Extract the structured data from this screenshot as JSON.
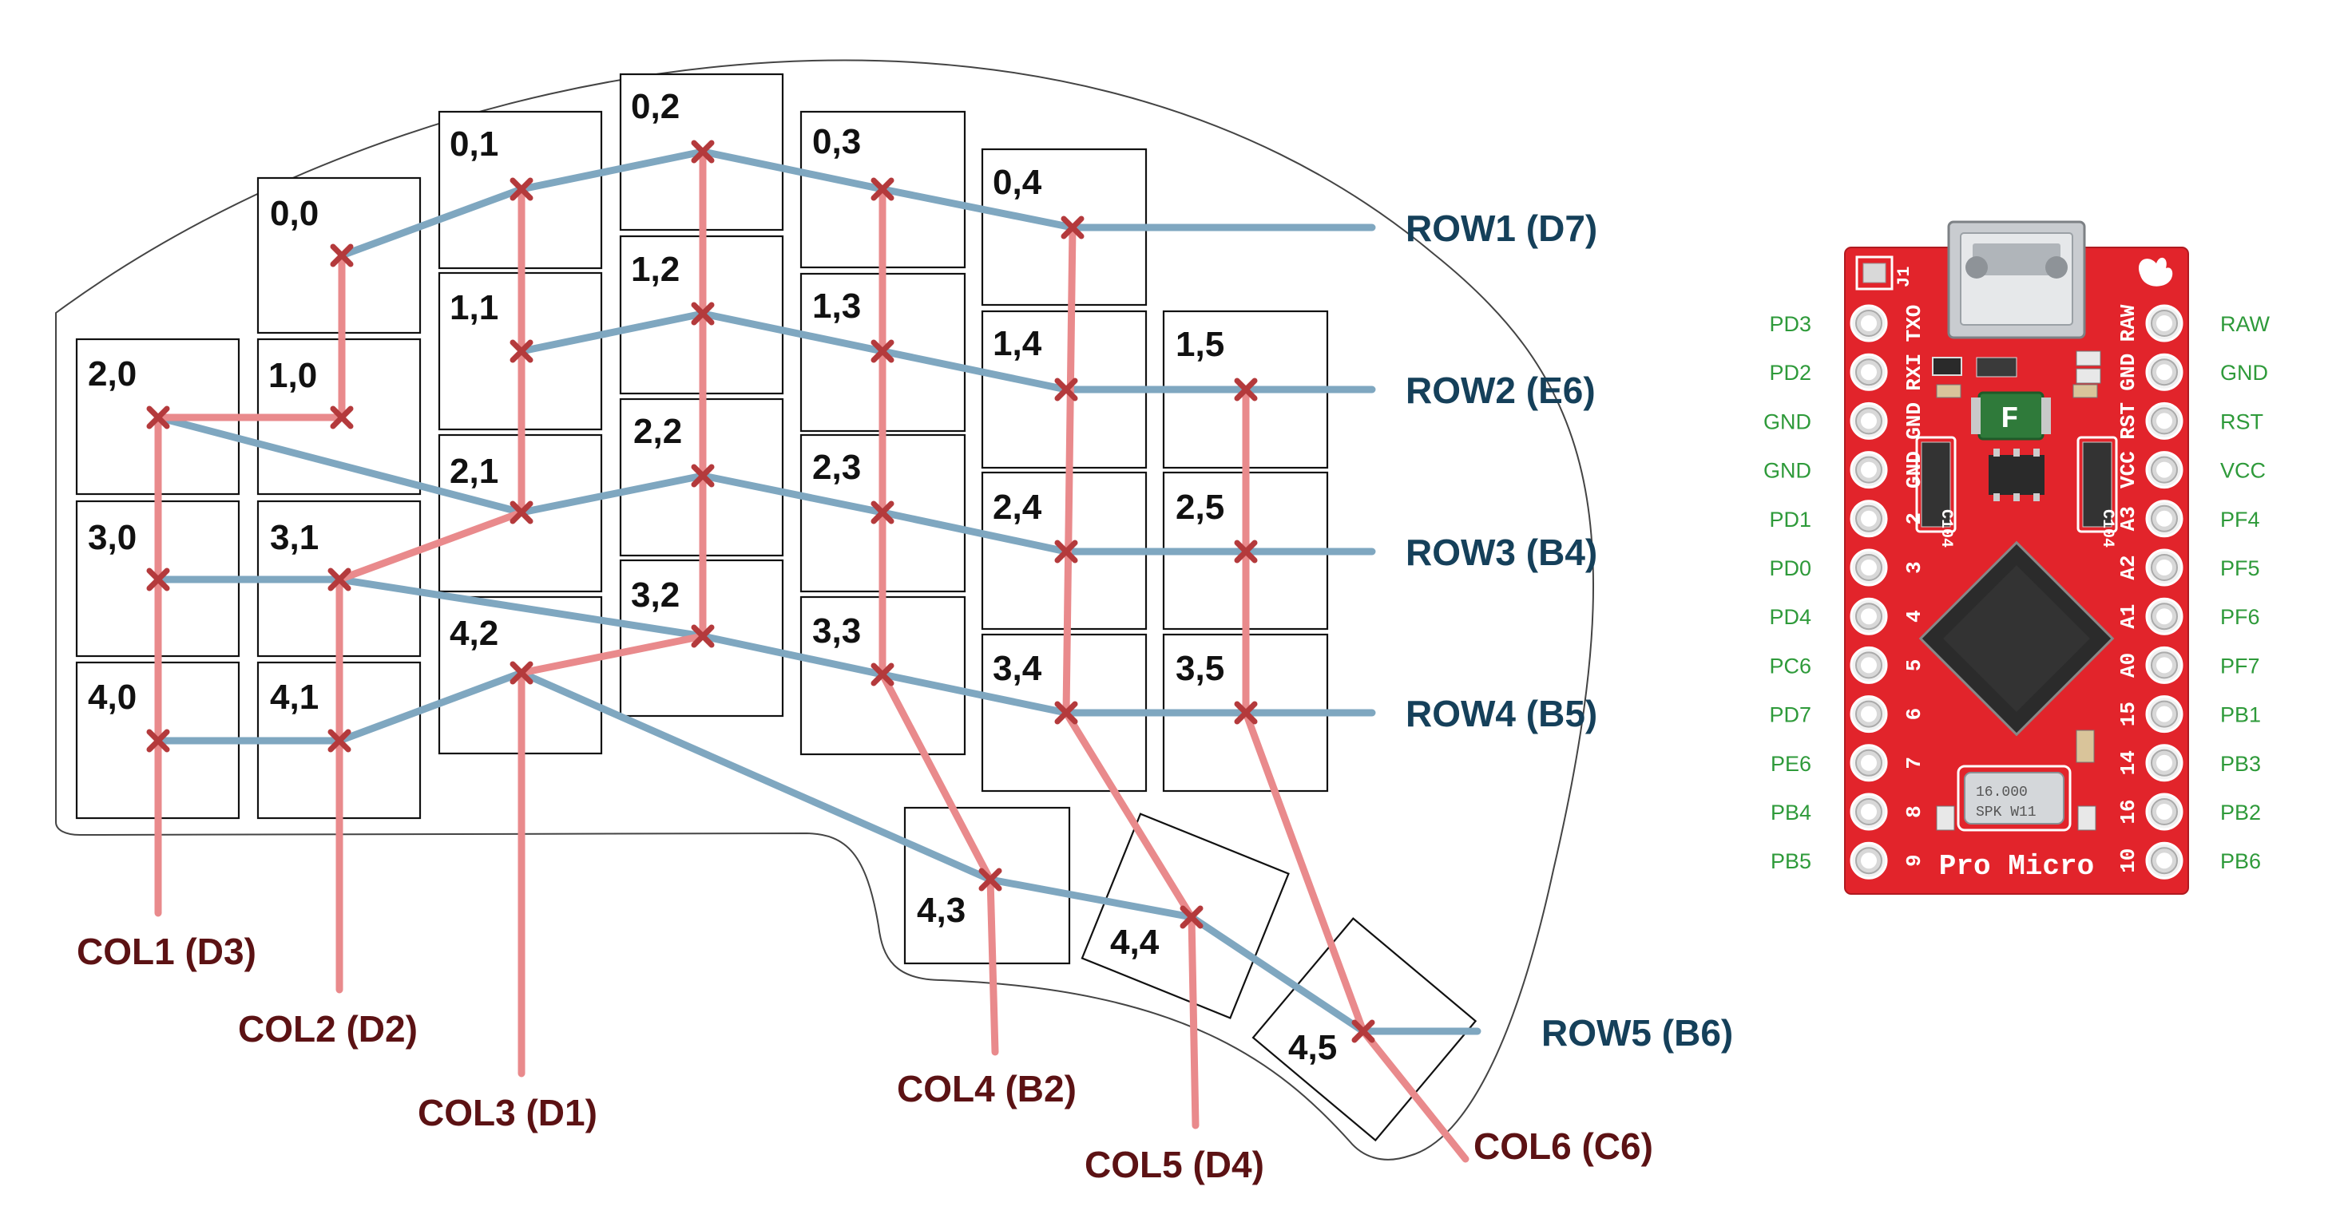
{
  "keys": [
    {
      "id": "0,0",
      "label": "0,0"
    },
    {
      "id": "0,1",
      "label": "0,1"
    },
    {
      "id": "0,2",
      "label": "0,2"
    },
    {
      "id": "0,3",
      "label": "0,3"
    },
    {
      "id": "0,4",
      "label": "0,4"
    },
    {
      "id": "1,0",
      "label": "1,0"
    },
    {
      "id": "1,1",
      "label": "1,1"
    },
    {
      "id": "1,2",
      "label": "1,2"
    },
    {
      "id": "1,3",
      "label": "1,3"
    },
    {
      "id": "1,4",
      "label": "1,4"
    },
    {
      "id": "1,5",
      "label": "1,5"
    },
    {
      "id": "2,0",
      "label": "2,0"
    },
    {
      "id": "2,1",
      "label": "2,1"
    },
    {
      "id": "2,2",
      "label": "2,2"
    },
    {
      "id": "2,3",
      "label": "2,3"
    },
    {
      "id": "2,4",
      "label": "2,4"
    },
    {
      "id": "2,5",
      "label": "2,5"
    },
    {
      "id": "3,0",
      "label": "3,0"
    },
    {
      "id": "3,1",
      "label": "3,1"
    },
    {
      "id": "3,2",
      "label": "3,2"
    },
    {
      "id": "3,3",
      "label": "3,3"
    },
    {
      "id": "3,4",
      "label": "3,4"
    },
    {
      "id": "3,5",
      "label": "3,5"
    },
    {
      "id": "4,0",
      "label": "4,0"
    },
    {
      "id": "4,1",
      "label": "4,1"
    },
    {
      "id": "4,2",
      "label": "4,2"
    },
    {
      "id": "4,3",
      "label": "4,3"
    },
    {
      "id": "4,4",
      "label": "4,4"
    },
    {
      "id": "4,5",
      "label": "4,5"
    }
  ],
  "rows": [
    "ROW1 (D7)",
    "ROW2 (E6)",
    "ROW3 (B4)",
    "ROW4 (B5)",
    "ROW5 (B6)"
  ],
  "cols": [
    "COL1 (D3)",
    "COL2 (D2)",
    "COL3 (D1)",
    "COL4 (B2)",
    "COL5 (D4)",
    "COL6 (C6)"
  ],
  "pro_micro": {
    "left_pins": [
      "PD3",
      "PD2",
      "GND",
      "GND",
      "PD1",
      "PD0",
      "PD4",
      "PC6",
      "PD7",
      "PE6",
      "PB4",
      "PB5"
    ],
    "right_pins": [
      "RAW",
      "GND",
      "RST",
      "VCC",
      "PF4",
      "PF5",
      "PF6",
      "PF7",
      "PB1",
      "PB3",
      "PB2",
      "PB6"
    ],
    "board_left_silk": [
      "TXO",
      "RXI",
      "GND",
      "GND",
      "2",
      "3",
      "4",
      "5",
      "6",
      "7",
      "8",
      "9"
    ],
    "board_right_silk": [
      "RAW",
      "GND",
      "RST",
      "VCC",
      "A3",
      "A2",
      "A1",
      "A0",
      "15",
      "14",
      "16",
      "10"
    ],
    "board_name": "Pro Micro",
    "header_label": "J1",
    "fuse_label": "F",
    "regulator_label": "C104",
    "crystal_line1": "16.000",
    "crystal_line2": "SPK W11"
  },
  "colors": {
    "row_wire": "#7fa7c0",
    "col_wire": "#e98a8c",
    "diode_mark": "#b43a3c",
    "row_text": "#15405a",
    "col_text": "#5c1214",
    "pin_text": "#2e9a3a",
    "board_red": "#e2242b"
  }
}
